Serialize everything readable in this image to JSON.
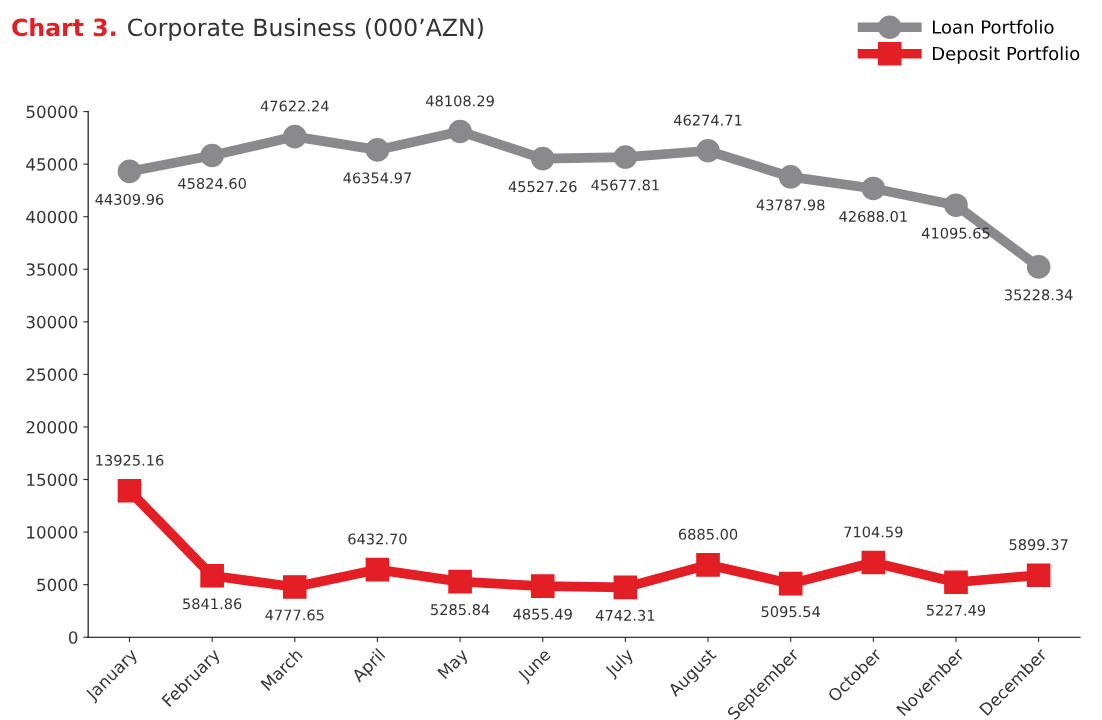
{
  "chart_data": {
    "type": "line",
    "title": "Chart 3.",
    "subtitle": "Corporate Business (000’AZN)",
    "categories": [
      "January",
      "February",
      "March",
      "April",
      "May",
      "June",
      "July",
      "August",
      "September",
      "October",
      "November",
      "December"
    ],
    "series": [
      {
        "name": "Loan Portfolio",
        "color": "#8a8a8c",
        "marker": "circle",
        "values": [
          44309.96,
          45824.6,
          47622.24,
          46354.97,
          48108.29,
          45527.26,
          45677.81,
          46274.71,
          43787.98,
          42688.01,
          41095.65,
          35228.34
        ],
        "value_labels": [
          "44309.96",
          "45824.60",
          "47622.24",
          "46354.97",
          "48108.29",
          "45527.26",
          "45677.81",
          "46274.71",
          "43787.98",
          "42688.01",
          "41095.65",
          "35228.34"
        ]
      },
      {
        "name": "Deposit Portfolio",
        "color": "#e31e24",
        "marker": "square",
        "values": [
          13925.16,
          5841.86,
          4777.65,
          6432.7,
          5285.84,
          4855.49,
          4742.31,
          6885.0,
          5095.54,
          7104.59,
          5227.49,
          5899.37
        ],
        "value_labels": [
          "13925.16",
          "5841.86",
          "4777.65",
          "6432.70",
          "5285.84",
          "4855.49",
          "4742.31",
          "6885.00",
          "5095.54",
          "7104.59",
          "5227.49",
          "5899.37"
        ]
      }
    ],
    "ylim": [
      0,
      50000
    ],
    "yticks": [
      0,
      5000,
      10000,
      15000,
      20000,
      25000,
      30000,
      35000,
      40000,
      45000,
      50000
    ],
    "grid": false,
    "legend": "top right"
  }
}
